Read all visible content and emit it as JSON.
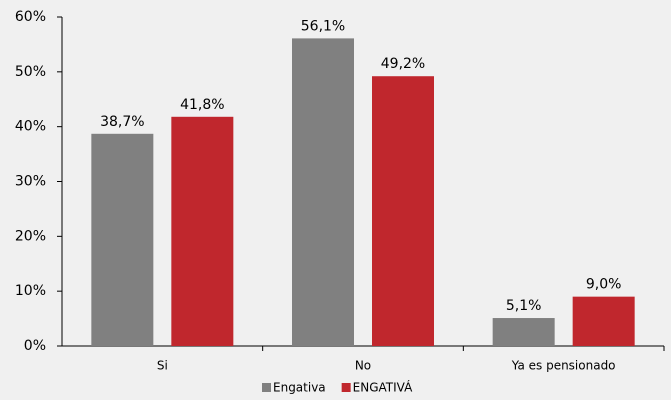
{
  "chart_data": {
    "type": "bar",
    "categories": [
      "Si",
      "No",
      "Ya es pensionado"
    ],
    "series": [
      {
        "name": "Engativa",
        "color": "#808080",
        "values": [
          38.7,
          56.1,
          5.1
        ],
        "value_labels": [
          "38,7%",
          "56,1%",
          "5,1%"
        ]
      },
      {
        "name": "ENGATIVÁ",
        "color": "#c0272d",
        "values": [
          41.8,
          49.2,
          9.0
        ],
        "value_labels": [
          "41,8%",
          "49,2%",
          "9,0%"
        ]
      }
    ],
    "ylim": [
      0,
      60
    ],
    "yticks": [
      {
        "value": 0,
        "label": "0%"
      },
      {
        "value": 10,
        "label": "10%"
      },
      {
        "value": 20,
        "label": "20%"
      },
      {
        "value": 30,
        "label": "30%"
      },
      {
        "value": 40,
        "label": "40%"
      },
      {
        "value": 50,
        "label": "50%"
      },
      {
        "value": 60,
        "label": "60%"
      }
    ],
    "grid": false
  }
}
